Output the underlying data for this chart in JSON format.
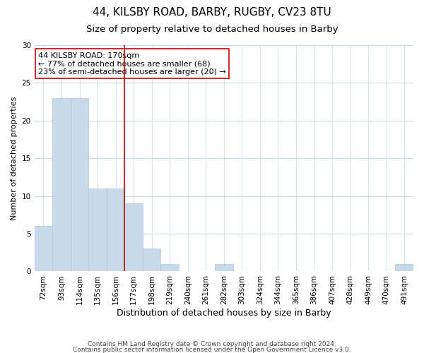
{
  "title": "44, KILSBY ROAD, BARBY, RUGBY, CV23 8TU",
  "subtitle": "Size of property relative to detached houses in Barby",
  "xlabel": "Distribution of detached houses by size in Barby",
  "ylabel": "Number of detached properties",
  "categories": [
    "72sqm",
    "93sqm",
    "114sqm",
    "135sqm",
    "156sqm",
    "177sqm",
    "198sqm",
    "219sqm",
    "240sqm",
    "261sqm",
    "282sqm",
    "303sqm",
    "324sqm",
    "344sqm",
    "365sqm",
    "386sqm",
    "407sqm",
    "428sqm",
    "449sqm",
    "470sqm",
    "491sqm"
  ],
  "values": [
    6,
    23,
    23,
    11,
    11,
    9,
    3,
    1,
    0,
    0,
    1,
    0,
    0,
    0,
    0,
    0,
    0,
    0,
    0,
    0,
    1
  ],
  "bar_color": "#c8daea",
  "bar_edge_color": "#b0c8e0",
  "property_line_color": "#cc0000",
  "property_line_index": 4.5,
  "annotation_line1": "44 KILSBY ROAD: 170sqm",
  "annotation_line2": "← 77% of detached houses are smaller (68)",
  "annotation_line3": "23% of semi-detached houses are larger (20) →",
  "annotation_box_edge_color": "#cc0000",
  "annotation_box_face_color": "#ffffff",
  "ylim": [
    0,
    30
  ],
  "yticks": [
    0,
    5,
    10,
    15,
    20,
    25,
    30
  ],
  "footer_line1": "Contains HM Land Registry data © Crown copyright and database right 2024.",
  "footer_line2": "Contains public sector information licensed under the Open Government Licence v3.0.",
  "background_color": "#ffffff",
  "grid_color": "#c8d8ea",
  "title_fontsize": 11,
  "subtitle_fontsize": 9.5,
  "xlabel_fontsize": 9,
  "ylabel_fontsize": 8,
  "annotation_fontsize": 8,
  "tick_fontsize": 7.5,
  "footer_fontsize": 6.5
}
